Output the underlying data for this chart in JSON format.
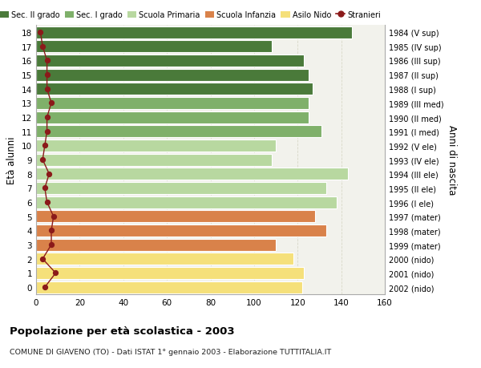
{
  "ages": [
    18,
    17,
    16,
    15,
    14,
    13,
    12,
    11,
    10,
    9,
    8,
    7,
    6,
    5,
    4,
    3,
    2,
    1,
    0
  ],
  "bar_values": [
    145,
    108,
    123,
    125,
    127,
    125,
    125,
    131,
    110,
    108,
    143,
    133,
    138,
    128,
    133,
    110,
    118,
    123,
    122
  ],
  "bar_colors": [
    "#4a7a3a",
    "#4a7a3a",
    "#4a7a3a",
    "#4a7a3a",
    "#4a7a3a",
    "#7fb06a",
    "#7fb06a",
    "#7fb06a",
    "#b8d8a0",
    "#b8d8a0",
    "#b8d8a0",
    "#b8d8a0",
    "#b8d8a0",
    "#d9824a",
    "#d9824a",
    "#d9824a",
    "#f5e07a",
    "#f5e07a",
    "#f5e07a"
  ],
  "stranieri_values": [
    2,
    3,
    5,
    5,
    5,
    7,
    5,
    5,
    4,
    3,
    6,
    4,
    5,
    8,
    7,
    7,
    3,
    9,
    4
  ],
  "right_labels": [
    "1984 (V sup)",
    "1985 (IV sup)",
    "1986 (III sup)",
    "1987 (II sup)",
    "1988 (I sup)",
    "1989 (III med)",
    "1990 (II med)",
    "1991 (I med)",
    "1992 (V ele)",
    "1993 (IV ele)",
    "1994 (III ele)",
    "1995 (II ele)",
    "1996 (I ele)",
    "1997 (mater)",
    "1998 (mater)",
    "1999 (mater)",
    "2000 (nido)",
    "2001 (nido)",
    "2002 (nido)"
  ],
  "legend_labels": [
    "Sec. II grado",
    "Sec. I grado",
    "Scuola Primaria",
    "Scuola Infanzia",
    "Asilo Nido",
    "Stranieri"
  ],
  "legend_colors": [
    "#4a7a3a",
    "#7fb06a",
    "#b8d8a0",
    "#d9824a",
    "#f5e07a",
    "#8b1a1a"
  ],
  "ylabel_left": "Età alunni",
  "ylabel_right": "Anni di nascita",
  "title": "Popolazione per età scolastica - 2003",
  "subtitle": "COMUNE DI GIAVENO (TO) - Dati ISTAT 1° gennaio 2003 - Elaborazione TUTTITALIA.IT",
  "xlim": [
    0,
    160
  ],
  "xticks": [
    0,
    20,
    40,
    60,
    80,
    100,
    120,
    140,
    160
  ],
  "bg_color": "#ffffff",
  "bar_bg_color": "#f2f2ec",
  "grid_color": "#d8d8c8"
}
